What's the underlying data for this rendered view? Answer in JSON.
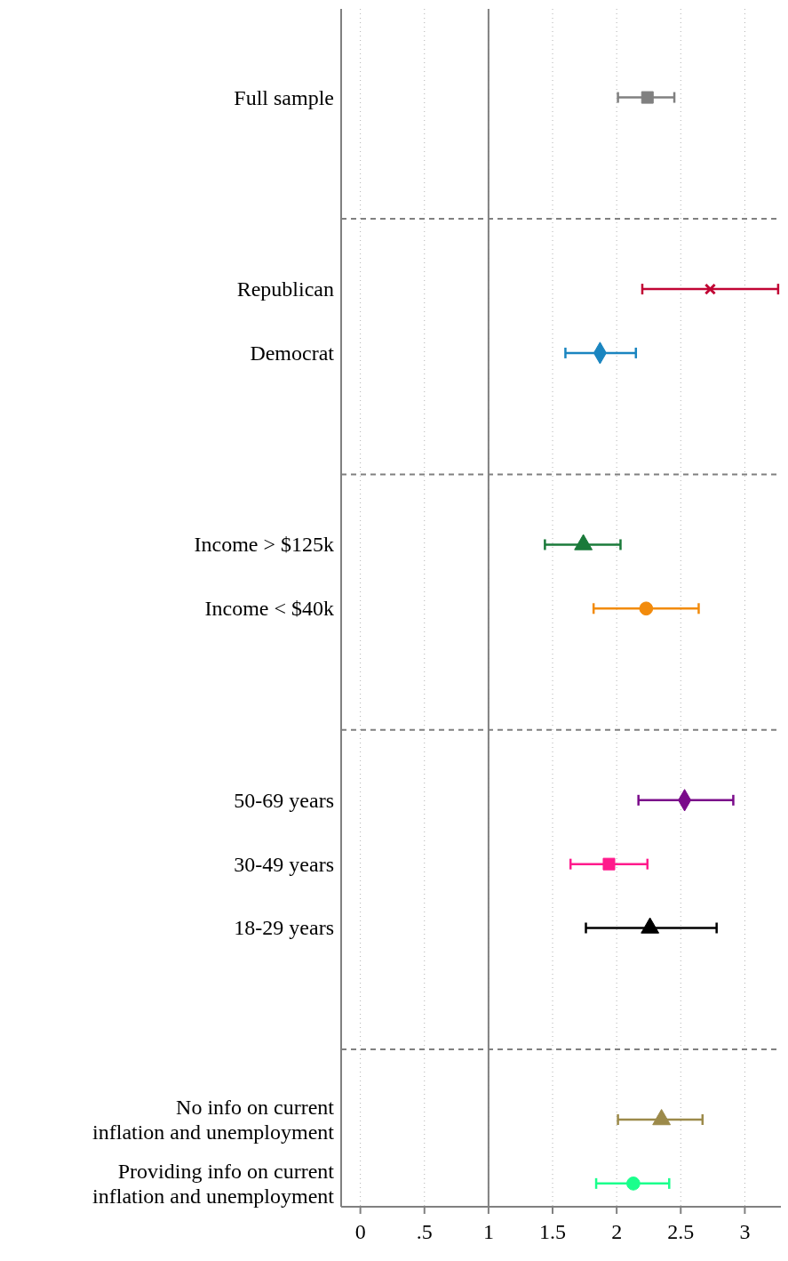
{
  "chart_data": {
    "type": "scatter",
    "orientation": "horizontal",
    "categories": [
      "Full sample",
      null,
      null,
      "Republican",
      "Democrat",
      null,
      null,
      "Income > $125k",
      "Income < $40k",
      null,
      null,
      "50-69 years",
      "30-49 years",
      "18-29 years",
      null,
      null,
      "No info on current inflation and unemployment",
      "Providing info on current inflation and unemployment"
    ],
    "xlim": [
      -0.15,
      3.33
    ],
    "xticks": [
      0,
      {
        "value": 0.5,
        "label": ".5"
      },
      1,
      1.5,
      2,
      2.5,
      3
    ],
    "grid": "x",
    "ref_lines": [
      {
        "axis": "x",
        "value": 1,
        "line_style": "solid",
        "color": "#808080"
      }
    ],
    "series": [
      {
        "color": "#808080",
        "marker": "square",
        "values": [
          2.24,
          null,
          null,
          null,
          null,
          null,
          null,
          null,
          null,
          null,
          null,
          null,
          null,
          null,
          null,
          null,
          null,
          null
        ],
        "errors": [
          [
            2.01,
            2.45
          ],
          null,
          null,
          null,
          null,
          null,
          null,
          null,
          null,
          null,
          null,
          null,
          null,
          null,
          null,
          null,
          null,
          null
        ]
      },
      {
        "color": "#c10534",
        "marker": "cross",
        "values": [
          null,
          null,
          null,
          2.73,
          null,
          null,
          null,
          null,
          null,
          null,
          null,
          null,
          null,
          null,
          null,
          null,
          null,
          null
        ],
        "errors": [
          null,
          null,
          null,
          [
            2.2,
            3.26
          ],
          null,
          null,
          null,
          null,
          null,
          null,
          null,
          null,
          null,
          null,
          null,
          null,
          null,
          null
        ]
      },
      {
        "color": "#1a85c0",
        "marker": "diamond",
        "values": [
          null,
          null,
          null,
          null,
          1.87,
          null,
          null,
          null,
          null,
          null,
          null,
          null,
          null,
          null,
          null,
          null,
          null,
          null
        ],
        "errors": [
          null,
          null,
          null,
          null,
          [
            1.6,
            2.15
          ],
          null,
          null,
          null,
          null,
          null,
          null,
          null,
          null,
          null,
          null,
          null,
          null,
          null
        ]
      },
      {
        "color": "#1a7a3a",
        "marker": "triangle",
        "values": [
          null,
          null,
          null,
          null,
          null,
          null,
          null,
          1.74,
          null,
          null,
          null,
          null,
          null,
          null,
          null,
          null,
          null,
          null
        ],
        "errors": [
          null,
          null,
          null,
          null,
          null,
          null,
          null,
          [
            1.44,
            2.03
          ],
          null,
          null,
          null,
          null,
          null,
          null,
          null,
          null,
          null,
          null
        ]
      },
      {
        "color": "#f28b0c",
        "marker": "circle",
        "values": [
          null,
          null,
          null,
          null,
          null,
          null,
          null,
          null,
          2.23,
          null,
          null,
          null,
          null,
          null,
          null,
          null,
          null,
          null
        ],
        "errors": [
          null,
          null,
          null,
          null,
          null,
          null,
          null,
          null,
          [
            1.82,
            2.64
          ],
          null,
          null,
          null,
          null,
          null,
          null,
          null,
          null,
          null
        ]
      },
      {
        "color": "#7a0a8a",
        "marker": "diamond",
        "values": [
          null,
          null,
          null,
          null,
          null,
          null,
          null,
          null,
          null,
          null,
          null,
          2.53,
          null,
          null,
          null,
          null,
          null,
          null
        ],
        "errors": [
          null,
          null,
          null,
          null,
          null,
          null,
          null,
          null,
          null,
          null,
          null,
          [
            2.17,
            2.91
          ],
          null,
          null,
          null,
          null,
          null,
          null
        ]
      },
      {
        "color": "#ff1a8c",
        "marker": "square",
        "values": [
          null,
          null,
          null,
          null,
          null,
          null,
          null,
          null,
          null,
          null,
          null,
          null,
          1.94,
          null,
          null,
          null,
          null,
          null
        ],
        "errors": [
          null,
          null,
          null,
          null,
          null,
          null,
          null,
          null,
          null,
          null,
          null,
          null,
          [
            1.64,
            2.24
          ],
          null,
          null,
          null,
          null,
          null
        ]
      },
      {
        "color": "#000000",
        "marker": "triangle",
        "values": [
          null,
          null,
          null,
          null,
          null,
          null,
          null,
          null,
          null,
          null,
          null,
          null,
          null,
          2.26,
          null,
          null,
          null,
          null
        ],
        "errors": [
          null,
          null,
          null,
          null,
          null,
          null,
          null,
          null,
          null,
          null,
          null,
          null,
          null,
          [
            1.76,
            2.78
          ],
          null,
          null,
          null,
          null
        ]
      },
      {
        "color": "#9c8a4a",
        "marker": "triangle",
        "values": [
          null,
          null,
          null,
          null,
          null,
          null,
          null,
          null,
          null,
          null,
          null,
          null,
          null,
          null,
          null,
          null,
          2.35,
          null
        ],
        "errors": [
          null,
          null,
          null,
          null,
          null,
          null,
          null,
          null,
          null,
          null,
          null,
          null,
          null,
          null,
          null,
          null,
          [
            2.01,
            2.67
          ],
          null
        ]
      },
      {
        "color": "#1aff8c",
        "marker": "circle",
        "values": [
          null,
          null,
          null,
          null,
          null,
          null,
          null,
          null,
          null,
          null,
          null,
          null,
          null,
          null,
          null,
          null,
          null,
          2.13
        ],
        "errors": [
          null,
          null,
          null,
          null,
          null,
          null,
          null,
          null,
          null,
          null,
          null,
          null,
          null,
          null,
          null,
          null,
          null,
          [
            1.84,
            2.41
          ]
        ]
      }
    ]
  }
}
